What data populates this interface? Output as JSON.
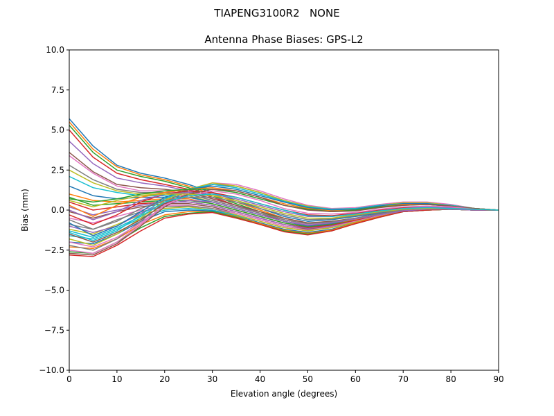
{
  "chart_data": {
    "type": "line",
    "suptitle": "TIAPENG3100R2   NONE",
    "title": "Antenna Phase Biases: GPS-L2",
    "xlabel": "Elevation angle (degrees)",
    "ylabel": "Bias (mm)",
    "xlim": [
      0,
      90
    ],
    "ylim": [
      -10,
      10
    ],
    "xticks": [
      0,
      10,
      20,
      30,
      40,
      50,
      60,
      70,
      80,
      90
    ],
    "yticks": [
      -10.0,
      -7.5,
      -5.0,
      -2.5,
      0.0,
      2.5,
      5.0,
      7.5,
      10.0
    ],
    "ytick_labels": [
      "−10.0",
      "−7.5",
      "−5.0",
      "−2.5",
      "0.0",
      "2.5",
      "5.0",
      "7.5",
      "10.0"
    ],
    "grid": false,
    "legend": "none",
    "x": [
      0,
      5,
      10,
      15,
      20,
      25,
      30,
      35,
      40,
      45,
      50,
      55,
      60,
      65,
      70,
      75,
      80,
      85,
      90
    ],
    "colors": [
      "#1f77b4",
      "#ff7f0e",
      "#2ca02c",
      "#d62728",
      "#9467bd",
      "#8c564b",
      "#e377c2",
      "#7f7f7f",
      "#bcbd22",
      "#17becf"
    ],
    "series": [
      {
        "values": [
          5.7,
          4.0,
          2.8,
          2.3,
          2.0,
          1.6,
          1.1,
          0.6,
          0.1,
          -0.4,
          -0.7,
          -0.6,
          -0.4,
          -0.2,
          0.0,
          0.05,
          0.05,
          0.0,
          0.0
        ]
      },
      {
        "values": [
          5.5,
          3.8,
          2.7,
          2.2,
          1.9,
          1.5,
          1.0,
          0.5,
          0.0,
          -0.5,
          -0.8,
          -0.7,
          -0.5,
          -0.25,
          0.0,
          0.05,
          0.05,
          0.0,
          0.0
        ]
      },
      {
        "values": [
          5.3,
          3.6,
          2.5,
          2.1,
          1.8,
          1.4,
          0.9,
          0.4,
          -0.1,
          -0.6,
          -0.9,
          -0.8,
          -0.55,
          -0.3,
          -0.05,
          0.05,
          0.05,
          0.0,
          0.0
        ]
      },
      {
        "values": [
          5.0,
          3.3,
          2.3,
          1.9,
          1.6,
          1.3,
          0.8,
          0.3,
          -0.2,
          -0.7,
          -1.0,
          -0.85,
          -0.6,
          -0.3,
          -0.05,
          0.05,
          0.05,
          0.0,
          0.0
        ]
      },
      {
        "values": [
          4.3,
          2.9,
          2.0,
          1.7,
          1.5,
          1.2,
          0.7,
          0.3,
          -0.2,
          -0.6,
          -0.9,
          -0.8,
          -0.55,
          -0.3,
          -0.05,
          0.05,
          0.05,
          0.0,
          0.0
        ]
      },
      {
        "values": [
          3.6,
          2.4,
          1.6,
          1.4,
          1.3,
          1.1,
          0.7,
          0.3,
          -0.1,
          -0.5,
          -0.8,
          -0.7,
          -0.5,
          -0.25,
          0.0,
          0.05,
          0.05,
          0.0,
          0.0
        ]
      },
      {
        "values": [
          3.4,
          2.3,
          1.5,
          1.2,
          1.2,
          1.0,
          0.6,
          0.2,
          -0.2,
          -0.6,
          -0.9,
          -0.8,
          -0.55,
          -0.3,
          -0.05,
          0.05,
          0.05,
          0.0,
          0.0
        ]
      },
      {
        "values": [
          2.8,
          1.9,
          1.3,
          1.1,
          1.1,
          1.0,
          0.6,
          0.2,
          -0.2,
          -0.6,
          -0.85,
          -0.75,
          -0.5,
          -0.25,
          0.0,
          0.05,
          0.05,
          0.0,
          0.0
        ]
      },
      {
        "values": [
          2.5,
          1.7,
          1.2,
          1.0,
          1.0,
          0.9,
          0.5,
          0.1,
          -0.3,
          -0.7,
          -0.95,
          -0.85,
          -0.6,
          -0.3,
          -0.05,
          0.05,
          0.05,
          0.0,
          0.0
        ]
      },
      {
        "values": [
          2.1,
          1.4,
          1.1,
          0.9,
          0.9,
          0.8,
          0.5,
          0.1,
          -0.3,
          -0.7,
          -0.95,
          -0.85,
          -0.6,
          -0.3,
          -0.05,
          0.05,
          0.05,
          0.0,
          0.0
        ]
      },
      {
        "values": [
          1.5,
          0.9,
          0.7,
          0.8,
          0.8,
          0.8,
          0.5,
          0.1,
          -0.3,
          -0.7,
          -1.0,
          -0.85,
          -0.6,
          -0.3,
          -0.05,
          0.05,
          0.05,
          0.0,
          0.0
        ]
      },
      {
        "values": [
          1.0,
          0.6,
          0.5,
          0.6,
          0.7,
          0.7,
          0.4,
          0.0,
          -0.4,
          -0.8,
          -1.05,
          -0.9,
          -0.6,
          -0.3,
          -0.05,
          0.05,
          0.05,
          0.0,
          0.0
        ]
      },
      {
        "values": [
          0.8,
          0.3,
          0.4,
          0.5,
          0.6,
          0.6,
          0.4,
          0.0,
          -0.4,
          -0.8,
          -1.05,
          -0.9,
          -0.65,
          -0.35,
          -0.05,
          0.05,
          0.05,
          0.0,
          0.0
        ]
      },
      {
        "values": [
          0.5,
          0.0,
          0.2,
          0.4,
          0.5,
          0.5,
          0.3,
          -0.1,
          -0.5,
          -0.9,
          -1.1,
          -0.95,
          -0.65,
          -0.35,
          -0.05,
          0.05,
          0.05,
          0.0,
          0.0
        ]
      },
      {
        "values": [
          0.2,
          -0.3,
          0.0,
          0.3,
          0.5,
          0.5,
          0.3,
          -0.1,
          -0.5,
          -0.9,
          -1.15,
          -1.0,
          -0.7,
          -0.35,
          -0.05,
          0.05,
          0.05,
          0.0,
          0.0
        ]
      },
      {
        "values": [
          -0.1,
          -0.5,
          -0.1,
          0.2,
          0.4,
          0.4,
          0.2,
          -0.2,
          -0.6,
          -1.0,
          -1.2,
          -1.05,
          -0.7,
          -0.35,
          -0.05,
          0.05,
          0.05,
          0.0,
          0.0
        ]
      },
      {
        "values": [
          -0.5,
          -0.8,
          -0.4,
          0.0,
          0.3,
          0.3,
          0.1,
          -0.2,
          -0.6,
          -1.0,
          -1.25,
          -1.05,
          -0.7,
          -0.35,
          -0.05,
          0.05,
          0.05,
          0.0,
          0.0
        ]
      },
      {
        "values": [
          -0.9,
          -1.2,
          -0.6,
          -0.1,
          0.2,
          0.25,
          0.1,
          -0.3,
          -0.7,
          -1.1,
          -1.3,
          -1.1,
          -0.75,
          -0.4,
          -0.1,
          0.0,
          0.05,
          0.0,
          0.0
        ]
      },
      {
        "values": [
          -1.2,
          -1.5,
          -0.9,
          -0.3,
          0.1,
          0.2,
          0.0,
          -0.3,
          -0.7,
          -1.1,
          -1.3,
          -1.1,
          -0.75,
          -0.4,
          -0.1,
          0.0,
          0.05,
          0.0,
          0.0
        ]
      },
      {
        "values": [
          -1.6,
          -1.8,
          -1.2,
          -0.5,
          0.0,
          0.1,
          0.0,
          -0.35,
          -0.8,
          -1.2,
          -1.4,
          -1.2,
          -0.8,
          -0.4,
          -0.1,
          0.0,
          0.05,
          0.0,
          0.0
        ]
      },
      {
        "values": [
          -2.0,
          -2.1,
          -1.5,
          -0.7,
          -0.1,
          0.0,
          -0.05,
          -0.4,
          -0.8,
          -1.2,
          -1.4,
          -1.2,
          -0.8,
          -0.4,
          -0.1,
          0.0,
          0.05,
          0.0,
          0.0
        ]
      },
      {
        "values": [
          -2.3,
          -2.4,
          -1.8,
          -0.9,
          -0.3,
          -0.1,
          -0.1,
          -0.4,
          -0.85,
          -1.25,
          -1.45,
          -1.25,
          -0.8,
          -0.4,
          -0.1,
          0.0,
          0.05,
          0.0,
          0.0
        ]
      },
      {
        "values": [
          -2.6,
          -2.7,
          -2.0,
          -1.1,
          -0.4,
          -0.2,
          -0.1,
          -0.45,
          -0.9,
          -1.3,
          -1.5,
          -1.3,
          -0.85,
          -0.45,
          -0.1,
          0.0,
          0.05,
          0.0,
          0.0
        ]
      },
      {
        "values": [
          -2.8,
          -2.9,
          -2.2,
          -1.3,
          -0.5,
          -0.25,
          -0.15,
          -0.5,
          -0.9,
          -1.35,
          -1.55,
          -1.3,
          -0.85,
          -0.45,
          -0.1,
          0.0,
          0.05,
          0.0,
          0.0
        ]
      },
      {
        "values": [
          -1.0,
          -1.4,
          -1.0,
          -0.2,
          0.4,
          0.6,
          0.5,
          0.1,
          -0.3,
          -0.7,
          -0.95,
          -0.8,
          -0.55,
          -0.3,
          -0.05,
          0.05,
          0.05,
          0.0,
          0.0
        ]
      },
      {
        "values": [
          -2.7,
          -2.8,
          -2.1,
          -1.0,
          0.2,
          1.0,
          1.6,
          1.5,
          1.1,
          0.6,
          0.2,
          0.05,
          0.1,
          0.3,
          0.45,
          0.45,
          0.3,
          0.1,
          0.0
        ]
      },
      {
        "values": [
          -2.5,
          -2.7,
          -2.0,
          -0.9,
          0.3,
          1.1,
          1.7,
          1.6,
          1.2,
          0.7,
          0.3,
          0.1,
          0.15,
          0.35,
          0.5,
          0.5,
          0.35,
          0.1,
          0.0
        ]
      },
      {
        "values": [
          -2.2,
          -2.5,
          -1.8,
          -0.7,
          0.5,
          1.2,
          1.6,
          1.5,
          1.1,
          0.6,
          0.2,
          0.05,
          0.1,
          0.3,
          0.45,
          0.45,
          0.3,
          0.1,
          0.0
        ]
      },
      {
        "values": [
          -1.8,
          -2.2,
          -1.5,
          -0.5,
          0.6,
          1.3,
          1.7,
          1.5,
          1.1,
          0.6,
          0.25,
          0.05,
          0.1,
          0.3,
          0.45,
          0.45,
          0.3,
          0.1,
          0.0
        ]
      },
      {
        "values": [
          -1.4,
          -1.9,
          -1.3,
          -0.3,
          0.7,
          1.3,
          1.6,
          1.4,
          1.0,
          0.55,
          0.2,
          0.05,
          0.1,
          0.3,
          0.4,
          0.4,
          0.3,
          0.1,
          0.0
        ]
      },
      {
        "values": [
          -0.8,
          -1.6,
          -1.0,
          -0.1,
          0.8,
          1.3,
          1.5,
          1.3,
          0.9,
          0.5,
          0.15,
          0.0,
          0.05,
          0.25,
          0.4,
          0.4,
          0.25,
          0.1,
          0.0
        ]
      },
      {
        "values": [
          0.3,
          -0.4,
          0.3,
          0.8,
          1.1,
          1.3,
          1.4,
          1.2,
          0.8,
          0.4,
          0.1,
          -0.05,
          0.0,
          0.2,
          0.35,
          0.35,
          0.25,
          0.1,
          0.0
        ]
      },
      {
        "values": [
          0.7,
          0.5,
          0.7,
          1.0,
          1.2,
          1.3,
          1.3,
          1.1,
          0.7,
          0.3,
          0.05,
          -0.1,
          0.0,
          0.2,
          0.3,
          0.35,
          0.25,
          0.1,
          0.0
        ]
      },
      {
        "values": [
          -0.3,
          -0.9,
          -0.3,
          0.5,
          1.0,
          1.2,
          1.1,
          0.8,
          0.4,
          0.0,
          -0.3,
          -0.35,
          -0.2,
          0.0,
          0.15,
          0.2,
          0.15,
          0.05,
          0.0
        ]
      },
      {
        "values": [
          0.0,
          -0.6,
          -0.1,
          0.6,
          1.0,
          1.1,
          1.0,
          0.7,
          0.3,
          -0.1,
          -0.4,
          -0.4,
          -0.25,
          -0.05,
          0.1,
          0.2,
          0.15,
          0.05,
          0.0
        ]
      },
      {
        "values": [
          -1.5,
          -2.0,
          -1.4,
          -0.6,
          0.4,
          1.0,
          1.3,
          1.2,
          0.8,
          0.3,
          0.0,
          -0.1,
          -0.05,
          0.15,
          0.3,
          0.35,
          0.25,
          0.1,
          0.0
        ]
      },
      {
        "values": [
          -2.0,
          -2.3,
          -1.7,
          -0.8,
          0.3,
          0.9,
          1.2,
          1.0,
          0.6,
          0.1,
          -0.2,
          -0.25,
          -0.15,
          0.05,
          0.2,
          0.25,
          0.2,
          0.05,
          0.0
        ]
      },
      {
        "values": [
          -0.6,
          -1.2,
          -0.7,
          0.1,
          0.6,
          0.8,
          0.8,
          0.5,
          0.1,
          -0.3,
          -0.6,
          -0.55,
          -0.35,
          -0.15,
          0.05,
          0.1,
          0.1,
          0.05,
          0.0
        ]
      },
      {
        "values": [
          0.6,
          0.2,
          0.6,
          0.9,
          1.0,
          1.0,
          0.9,
          0.6,
          0.2,
          -0.2,
          -0.5,
          -0.5,
          -0.3,
          -0.1,
          0.05,
          0.1,
          0.1,
          0.05,
          0.0
        ]
      },
      {
        "values": [
          -1.3,
          -1.7,
          -1.1,
          -0.4,
          0.5,
          0.9,
          1.0,
          0.8,
          0.4,
          0.0,
          -0.35,
          -0.4,
          -0.25,
          -0.05,
          0.1,
          0.15,
          0.1,
          0.05,
          0.0
        ]
      }
    ]
  }
}
